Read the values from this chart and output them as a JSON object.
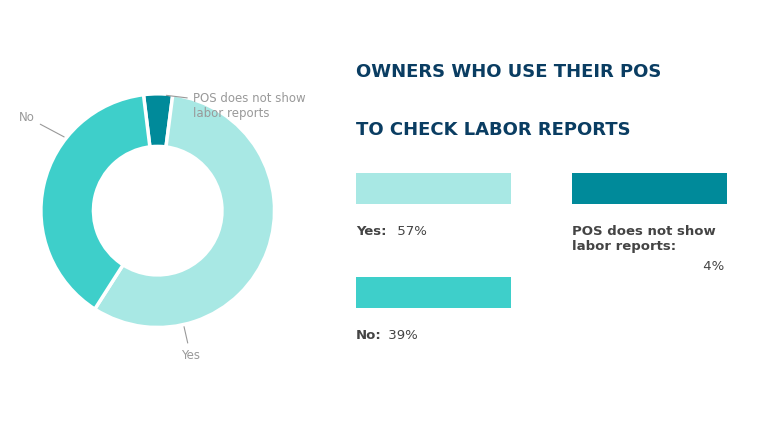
{
  "title_line1": "OWNERS WHO USE THEIR POS",
  "title_line2": "TO CHECK LABOR REPORTS",
  "title_color": "#0a3d62",
  "background_color": "#ffffff",
  "slices": [
    57,
    39,
    4
  ],
  "labels": [
    "Yes",
    "No",
    "POS does not show\nlabor reports"
  ],
  "colors": [
    "#a8e8e4",
    "#3ecfca",
    "#008a9a"
  ],
  "legend_items": [
    {
      "label_bold": "Yes:",
      "label_rest": " 57%",
      "color": "#a8e8e4"
    },
    {
      "label_bold": "No:",
      "label_rest": " 39%",
      "color": "#3ecfca"
    },
    {
      "label_bold": "POS does not show\nlabor reports:",
      "label_rest": " 4%",
      "color": "#008a9a"
    }
  ],
  "annotation_color": "#999999",
  "annotation_fontsize": 8.5,
  "title_fontsize": 13,
  "legend_fontsize": 9.5
}
